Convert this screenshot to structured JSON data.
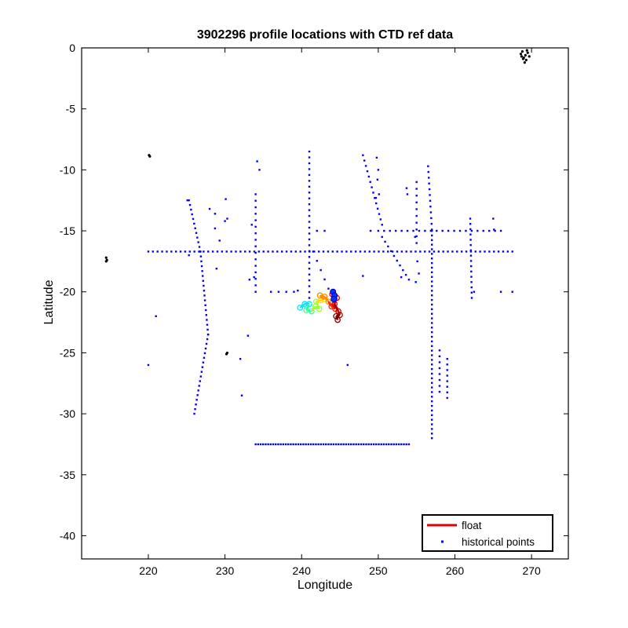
{
  "chart_data": {
    "type": "scatter",
    "title": "3902296 profile locations with CTD ref data",
    "xlabel": "Longitude",
    "ylabel": "Latitude",
    "xlim": [
      211.3,
      274.8
    ],
    "ylim": [
      -41.9,
      0
    ],
    "xticks": [
      220,
      230,
      240,
      250,
      260,
      270
    ],
    "yticks": [
      0,
      -5,
      -10,
      -15,
      -20,
      -25,
      -30,
      -35,
      -40
    ],
    "grid": false,
    "legend": {
      "placement": "bottom-right",
      "entries": [
        {
          "label": "float",
          "color": "#e00000",
          "marker": "line"
        },
        {
          "label": "historical points",
          "color": "#0000ff",
          "marker": "point"
        }
      ]
    },
    "colors": {
      "historical": "#0000ff",
      "float": "#e00000",
      "coastline": "#000000"
    },
    "coastline_points": [
      [
        220.1,
        -8.8
      ],
      [
        220.2,
        -8.9
      ],
      [
        214.5,
        -17.2
      ],
      [
        214.6,
        -17.4
      ],
      [
        214.5,
        -17.5
      ],
      [
        230.3,
        -25.0
      ],
      [
        230.2,
        -25.1
      ],
      [
        268.6,
        -0.5
      ],
      [
        268.9,
        -0.9
      ],
      [
        269.2,
        -0.6
      ],
      [
        268.8,
        -0.3
      ],
      [
        269.0,
        -0.8
      ],
      [
        269.3,
        -1.0
      ],
      [
        269.5,
        -0.4
      ],
      [
        269.7,
        -0.7
      ],
      [
        268.7,
        -0.7
      ],
      [
        269.1,
        -1.2
      ],
      [
        269.4,
        -0.2
      ]
    ],
    "historical_lines": [
      {
        "from": [
          220.0,
          -16.7
        ],
        "to": [
          267.5,
          -16.7
        ],
        "count": 80
      },
      {
        "from": [
          234.0,
          -32.5
        ],
        "to": [
          254.0,
          -32.5
        ],
        "count": 62
      },
      {
        "from": [
          241.0,
          -8.5
        ],
        "to": [
          241.0,
          -20.5
        ],
        "count": 26
      },
      {
        "from": [
          257.0,
          -15.0
        ],
        "to": [
          257.0,
          -32.0
        ],
        "count": 46
      },
      {
        "from": [
          256.5,
          -9.7
        ],
        "to": [
          257.0,
          -14.9
        ],
        "count": 12
      },
      {
        "from": [
          226.0,
          -30.0
        ],
        "to": [
          227.8,
          -23.5
        ],
        "count": 18
      },
      {
        "from": [
          227.8,
          -23.5
        ],
        "to": [
          226.8,
          -16.7
        ],
        "count": 18
      },
      {
        "from": [
          226.8,
          -16.7
        ],
        "to": [
          225.3,
          -12.5
        ],
        "count": 12
      },
      {
        "from": [
          258.0,
          -24.8
        ],
        "to": [
          258.0,
          -28.2
        ],
        "count": 8
      },
      {
        "from": [
          259.0,
          -25.5
        ],
        "to": [
          259.0,
          -28.7
        ],
        "count": 8
      },
      {
        "from": [
          250.0,
          -15.0
        ],
        "to": [
          266.0,
          -15.0
        ],
        "count": 22
      },
      {
        "from": [
          262.0,
          -14.0
        ],
        "to": [
          262.2,
          -20.5
        ],
        "count": 16
      },
      {
        "from": [
          248.0,
          -8.8
        ],
        "to": [
          250.5,
          -14.5
        ],
        "count": 14
      },
      {
        "from": [
          250.5,
          -15.5
        ],
        "to": [
          254.0,
          -19.0
        ],
        "count": 10
      },
      {
        "from": [
          255.0,
          -11.0
        ],
        "to": [
          255.0,
          -16.0
        ],
        "count": 10
      },
      {
        "from": [
          234.0,
          -12.0
        ],
        "to": [
          234.0,
          -20.0
        ],
        "count": 16
      },
      {
        "from": [
          241.5,
          -16.7
        ],
        "to": [
          244.0,
          -20.5
        ],
        "count": 6
      }
    ],
    "historical_points": [
      [
        234.2,
        -9.3
      ],
      [
        234.5,
        -10.0
      ],
      [
        230.1,
        -12.4
      ],
      [
        230.3,
        -14.0
      ],
      [
        230.0,
        -14.2
      ],
      [
        228.0,
        -13.2
      ],
      [
        228.7,
        -13.6
      ],
      [
        228.7,
        -14.8
      ],
      [
        229.3,
        -15.8
      ],
      [
        228.9,
        -18.1
      ],
      [
        225.1,
        -12.5
      ],
      [
        225.3,
        -17.0
      ],
      [
        221.0,
        -22.0
      ],
      [
        220.0,
        -26.0
      ],
      [
        232.0,
        -25.5
      ],
      [
        233.0,
        -23.6
      ],
      [
        232.2,
        -28.5
      ],
      [
        236.0,
        -20.0
      ],
      [
        237.0,
        -20.0
      ],
      [
        238.0,
        -20.0
      ],
      [
        239.0,
        -20.0
      ],
      [
        239.5,
        -19.9
      ],
      [
        246.0,
        -26.0
      ],
      [
        242.0,
        -15.0
      ],
      [
        243.0,
        -15.0
      ],
      [
        248.0,
        -18.7
      ],
      [
        249.0,
        -15.0
      ],
      [
        265.0,
        -14.0
      ],
      [
        265.1,
        -14.9
      ],
      [
        266.0,
        -20.0
      ],
      [
        267.5,
        -20.0
      ],
      [
        262.5,
        -20.0
      ],
      [
        233.5,
        -14.5
      ],
      [
        233.2,
        -19.0
      ],
      [
        233.8,
        -18.8
      ],
      [
        249.8,
        -9.0
      ],
      [
        250.0,
        -10.0
      ],
      [
        249.9,
        -10.8
      ],
      [
        250.1,
        -12.0
      ],
      [
        249.7,
        -12.3
      ],
      [
        253.8,
        -12.0
      ],
      [
        253.7,
        -11.5
      ],
      [
        254.8,
        -15.5
      ],
      [
        255.1,
        -17.5
      ],
      [
        255.3,
        -18.5
      ],
      [
        254.9,
        -19.2
      ],
      [
        253.0,
        -18.8
      ]
    ],
    "float_track": [
      [
        239.8,
        -21.3
      ],
      [
        240.4,
        -21.0
      ],
      [
        241.0,
        -21.0
      ],
      [
        240.6,
        -21.5
      ],
      [
        241.3,
        -21.6
      ],
      [
        241.8,
        -21.2
      ],
      [
        242.3,
        -21.4
      ],
      [
        241.9,
        -20.8
      ],
      [
        242.5,
        -20.7
      ],
      [
        242.9,
        -20.6
      ],
      [
        242.4,
        -20.3
      ],
      [
        243.0,
        -20.4
      ],
      [
        243.5,
        -20.8
      ],
      [
        243.9,
        -21.2
      ],
      [
        244.4,
        -21.4
      ],
      [
        244.0,
        -20.2
      ],
      [
        244.6,
        -20.5
      ],
      [
        244.3,
        -21.0
      ],
      [
        244.8,
        -21.6
      ],
      [
        245.0,
        -21.9
      ],
      [
        244.5,
        -22.0
      ],
      [
        244.7,
        -22.3
      ]
    ]
  }
}
